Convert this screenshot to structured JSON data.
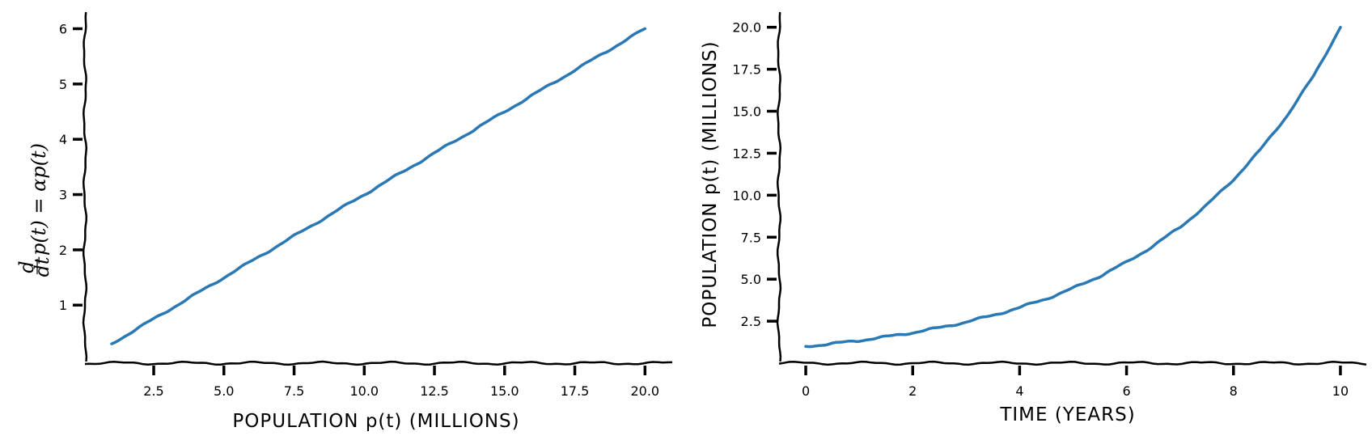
{
  "chart_data": [
    {
      "type": "line",
      "style": "xkcd",
      "xlabel": "POPULATION p(t) (MILLIONS)",
      "ylabel": "d/dt p(t) = αp(t)",
      "ylabel_parts": {
        "num": "d",
        "den": "dt",
        "rest": "p(t) = αp(t)"
      },
      "xlim": [
        0.05,
        21.0
      ],
      "ylim": [
        -0.05,
        6.3
      ],
      "xticks": [
        2.5,
        5.0,
        7.5,
        10.0,
        12.5,
        15.0,
        17.5,
        20.0
      ],
      "xtick_labels": [
        "2.5",
        "5.0",
        "7.5",
        "10.0",
        "12.5",
        "15.0",
        "17.5",
        "20.0"
      ],
      "yticks": [
        1,
        2,
        3,
        4,
        5,
        6
      ],
      "ytick_labels": [
        "1",
        "2",
        "3",
        "4",
        "5",
        "6"
      ],
      "grid": false,
      "colors": {
        "line": "#2b79b4",
        "axis": "#000000"
      },
      "series": [
        {
          "x": [
            1.0,
            2.0,
            3.0,
            4.0,
            5.0,
            6.0,
            7.0,
            8.0,
            9.0,
            10.0,
            11.0,
            12.0,
            13.0,
            14.0,
            15.0,
            16.0,
            17.0,
            18.0,
            19.0,
            20.0
          ],
          "y": [
            0.3,
            0.6,
            0.9,
            1.2,
            1.5,
            1.8,
            2.1,
            2.4,
            2.7,
            3.0,
            3.3,
            3.6,
            3.9,
            4.2,
            4.5,
            4.8,
            5.1,
            5.4,
            5.7,
            6.0
          ]
        }
      ]
    },
    {
      "type": "line",
      "style": "xkcd",
      "xlabel": "TIME (YEARS)",
      "ylabel": "POPULATION p(t) (MILLIONS)",
      "xlim": [
        -0.5,
        10.5
      ],
      "ylim": [
        0.0,
        20.9
      ],
      "xticks": [
        0,
        2,
        4,
        6,
        8,
        10
      ],
      "xtick_labels": [
        "0",
        "2",
        "4",
        "6",
        "8",
        "10"
      ],
      "yticks": [
        2.5,
        5.0,
        7.5,
        10.0,
        12.5,
        15.0,
        17.5,
        20.0
      ],
      "ytick_labels": [
        "2.5",
        "5.0",
        "7.5",
        "10.0",
        "12.5",
        "15.0",
        "17.5",
        "20.0"
      ],
      "grid": false,
      "colors": {
        "line": "#2b79b4",
        "axis": "#000000"
      },
      "series": [
        {
          "x": [
            0,
            0.5,
            1,
            1.5,
            2,
            2.5,
            3,
            3.5,
            4,
            4.5,
            5,
            5.5,
            6,
            6.5,
            7,
            7.5,
            8,
            8.5,
            9,
            9.5,
            10
          ],
          "y": [
            1.0,
            1.16,
            1.35,
            1.57,
            1.82,
            2.11,
            2.45,
            2.85,
            3.31,
            3.84,
            4.46,
            5.18,
            6.01,
            6.98,
            8.1,
            9.41,
            10.93,
            12.69,
            14.73,
            17.1,
            20.0
          ]
        }
      ]
    }
  ]
}
